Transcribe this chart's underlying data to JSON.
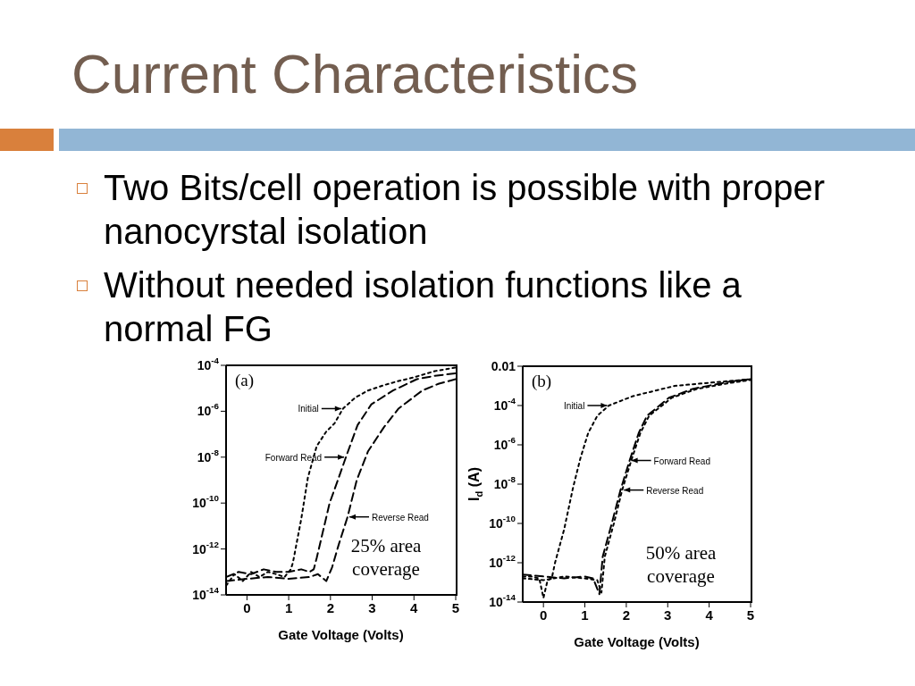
{
  "chart_data": [
    {
      "type": "line",
      "title": "Current Characteristics",
      "annotations": [
        "Two Bits/cell operation is possible with proper nanocyrstal isolation",
        "Without needed isolation functions like a normal FG",
        "(a)",
        "25% area coverage",
        {
          "text": "Initial",
          "x": 2.3,
          "y": 1.3e-06
        },
        {
          "text": "Forward Read",
          "x": 2.37,
          "y": 1e-08
        },
        {
          "text": "Reverse Read",
          "x": 2.41,
          "y": 2.5e-11
        }
      ],
      "xlabel": "Gate Voltage (Volts)",
      "xlim": [
        -0.5,
        5
      ],
      "xticks": [
        0,
        1,
        2,
        3,
        4,
        5
      ],
      "ylim": [
        1e-14,
        0.0001
      ],
      "log": "y",
      "yticks": [
        {
          "value": 1e-14,
          "label": "10$^{-14}$"
        },
        {
          "value": 1e-12,
          "label": "10$^{-12}$"
        },
        {
          "value": 1e-10,
          "label": "10$^{-10}$"
        },
        {
          "value": 1e-08,
          "label": "10$^{-8}$"
        },
        {
          "value": 1e-06,
          "label": "10$^{-6}$"
        },
        {
          "value": 0.0001,
          "label": "10$^{-4}$"
        }
      ],
      "series": [
        {
          "color": "#000000",
          "line_style": "dotted",
          "x": [
            -0.5,
            -0.3,
            -0.1,
            0.1,
            0.3,
            0.5,
            0.7,
            0.9,
            1.05,
            1.1,
            1.3,
            1.46,
            1.67,
            1.9,
            2.1,
            2.3,
            2.6,
            2.9,
            3.3,
            3.6,
            4.0,
            4.5,
            5.0
          ],
          "values": [
            2.5e-14,
            8e-14,
            4e-14,
            1e-13,
            6e-14,
            1e-13,
            8e-14,
            6e-14,
            1.3e-13,
            2.5e-13,
            2e-11,
            1.3e-09,
            3e-08,
            1.3e-07,
            3e-07,
            1.3e-06,
            4e-06,
            8e-06,
            1.4e-05,
            2e-05,
            3e-05,
            5.6e-05,
            8e-05
          ]
        },
        {
          "color": "#000000",
          "line_style": "dashed",
          "x": [
            -0.5,
            -0.2,
            0.1,
            0.4,
            0.7,
            1.0,
            1.3,
            1.5,
            1.6,
            1.67,
            1.98,
            2.2,
            2.37,
            2.65,
            2.98,
            3.5,
            4.07,
            4.5,
            5.0
          ],
          "values": [
            6e-14,
            1e-13,
            8e-14,
            1.3e-13,
            1e-13,
            1e-13,
            1.3e-13,
            1e-13,
            1.3e-13,
            4e-13,
            1e-10,
            1.3e-09,
            1e-08,
            2.5e-07,
            2e-06,
            8e-06,
            2.5e-05,
            3.5e-05,
            4.5e-05
          ]
        },
        {
          "color": "#000000",
          "line_style": "dashed",
          "x": [
            -0.5,
            0,
            0.5,
            1.0,
            1.5,
            1.7,
            1.9,
            2.04,
            2.2,
            2.41,
            2.63,
            2.9,
            3.28,
            3.63,
            4.2,
            4.6,
            5.0
          ],
          "values": [
            4e-14,
            5e-14,
            6e-14,
            5e-14,
            6e-14,
            8e-14,
            4e-14,
            1.6e-13,
            1.6e-12,
            2.5e-11,
            1e-09,
            1.8e-08,
            2e-07,
            1.3e-06,
            8e-06,
            1.6e-05,
            2.5e-05
          ]
        }
      ]
    },
    {
      "type": "line",
      "annotations": [
        "(b)",
        "50% area coverage",
        {
          "text": "Initial",
          "x": 1.58,
          "y": 0.0001
        },
        {
          "text": "Forward Read",
          "x": 2.08,
          "y": 1.6e-07
        },
        {
          "text": "Reverse Read",
          "x": 1.9,
          "y": 5e-09
        }
      ],
      "xlabel": "Gate Voltage (Volts)",
      "ylabel": "I$_{d}$ (A)",
      "xlim": [
        -0.5,
        5
      ],
      "xticks": [
        0,
        1,
        2,
        3,
        4,
        5
      ],
      "ylim": [
        1e-14,
        0.01
      ],
      "log": "y",
      "yticks": [
        {
          "value": 1e-14,
          "label": "10$^{-14}$"
        },
        {
          "value": 1e-12,
          "label": "10$^{-12}$"
        },
        {
          "value": 1e-10,
          "label": "10$^{-10}$"
        },
        {
          "value": 1e-08,
          "label": "10$^{-8}$"
        },
        {
          "value": 1e-06,
          "label": "10$^{-6}$"
        },
        {
          "value": 0.0001,
          "label": "10$^{-4}$"
        },
        0.01
      ],
      "series": [
        {
          "color": "#000000",
          "line_style": "dotted",
          "x": [
            -0.5,
            -0.3,
            -0.1,
            0,
            0.1,
            0.2,
            0.28,
            0.5,
            0.71,
            0.89,
            1.08,
            1.3,
            1.58,
            2.16,
            3.17,
            4.26,
            5.0
          ],
          "values": [
            2e-13,
            2e-13,
            1.6e-13,
            1.6e-14,
            1.3e-13,
            1.6e-13,
            1e-12,
            5e-11,
            6e-09,
            2e-07,
            4e-06,
            3e-05,
            0.0001,
            0.0003,
            0.001,
            0.0016,
            0.0022
          ]
        },
        {
          "color": "#000000",
          "line_style": "dashed",
          "x": [
            -0.5,
            0,
            0.5,
            1.0,
            1.2,
            1.35,
            1.43,
            1.65,
            1.86,
            2.08,
            2.3,
            2.5,
            3.03,
            3.6,
            4.46,
            5.0
          ],
          "values": [
            2.5e-13,
            2e-13,
            1.6e-13,
            2e-13,
            1.6e-13,
            2.5e-14,
            2e-12,
            1e-10,
            5e-09,
            1.6e-07,
            4e-06,
            3e-05,
            0.00025,
            0.0007,
            0.0016,
            0.0022
          ]
        },
        {
          "color": "#000000",
          "line_style": "dotted",
          "x": [
            -0.5,
            0,
            0.5,
            1.0,
            1.3,
            1.4,
            1.48,
            1.7,
            1.9,
            2.12,
            2.34,
            2.55,
            3.1,
            3.7,
            4.5,
            5.0
          ],
          "values": [
            1.6e-13,
            1.3e-13,
            2e-13,
            1.6e-13,
            1.3e-13,
            3e-14,
            2e-12,
            1e-10,
            5e-09,
            1.6e-07,
            4e-06,
            3e-05,
            0.00025,
            0.0007,
            0.0014,
            0.002
          ]
        }
      ]
    }
  ]
}
